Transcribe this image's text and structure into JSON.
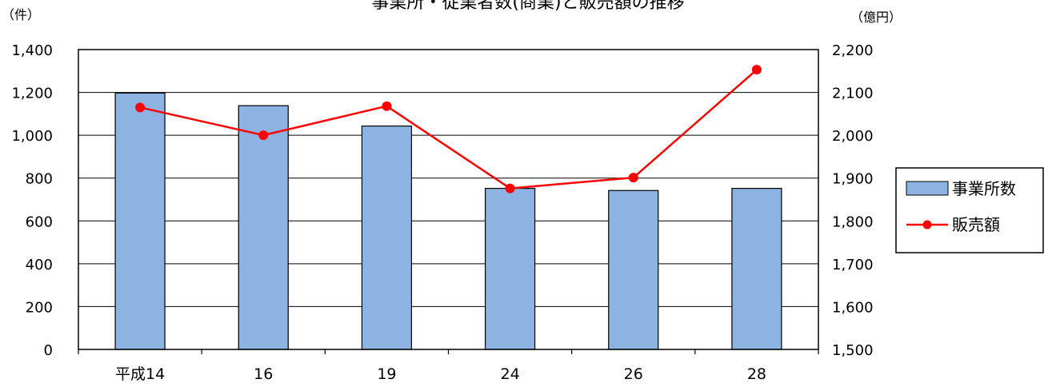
{
  "chart_data": {
    "type": "bar",
    "title": "事業所・従業者数(商業)と販売額の推移",
    "left_unit": "（件）",
    "right_unit": "（億円）",
    "categories": [
      "平成14",
      "16",
      "19",
      "24",
      "26",
      "28"
    ],
    "series": [
      {
        "name": "事業所数",
        "type": "bar",
        "axis": "left",
        "values": [
          1197,
          1138,
          1043,
          752,
          742,
          752
        ],
        "color": "#8db3e2"
      },
      {
        "name": "販売額",
        "type": "line",
        "axis": "right",
        "values": [
          2065,
          2000,
          2068,
          1876,
          1901,
          2153
        ],
        "color": "#ff0000"
      }
    ],
    "ylim_left": [
      0,
      1400
    ],
    "ylim_right": [
      1500,
      2200
    ],
    "yticks_left": [
      "0",
      "200",
      "400",
      "600",
      "800",
      "1,000",
      "1,200",
      "1,400"
    ],
    "yticks_right": [
      "1,500",
      "1,600",
      "1,700",
      "1,800",
      "1,900",
      "2,000",
      "2,100",
      "2,200"
    ],
    "grid": true,
    "legend_position": "right"
  }
}
